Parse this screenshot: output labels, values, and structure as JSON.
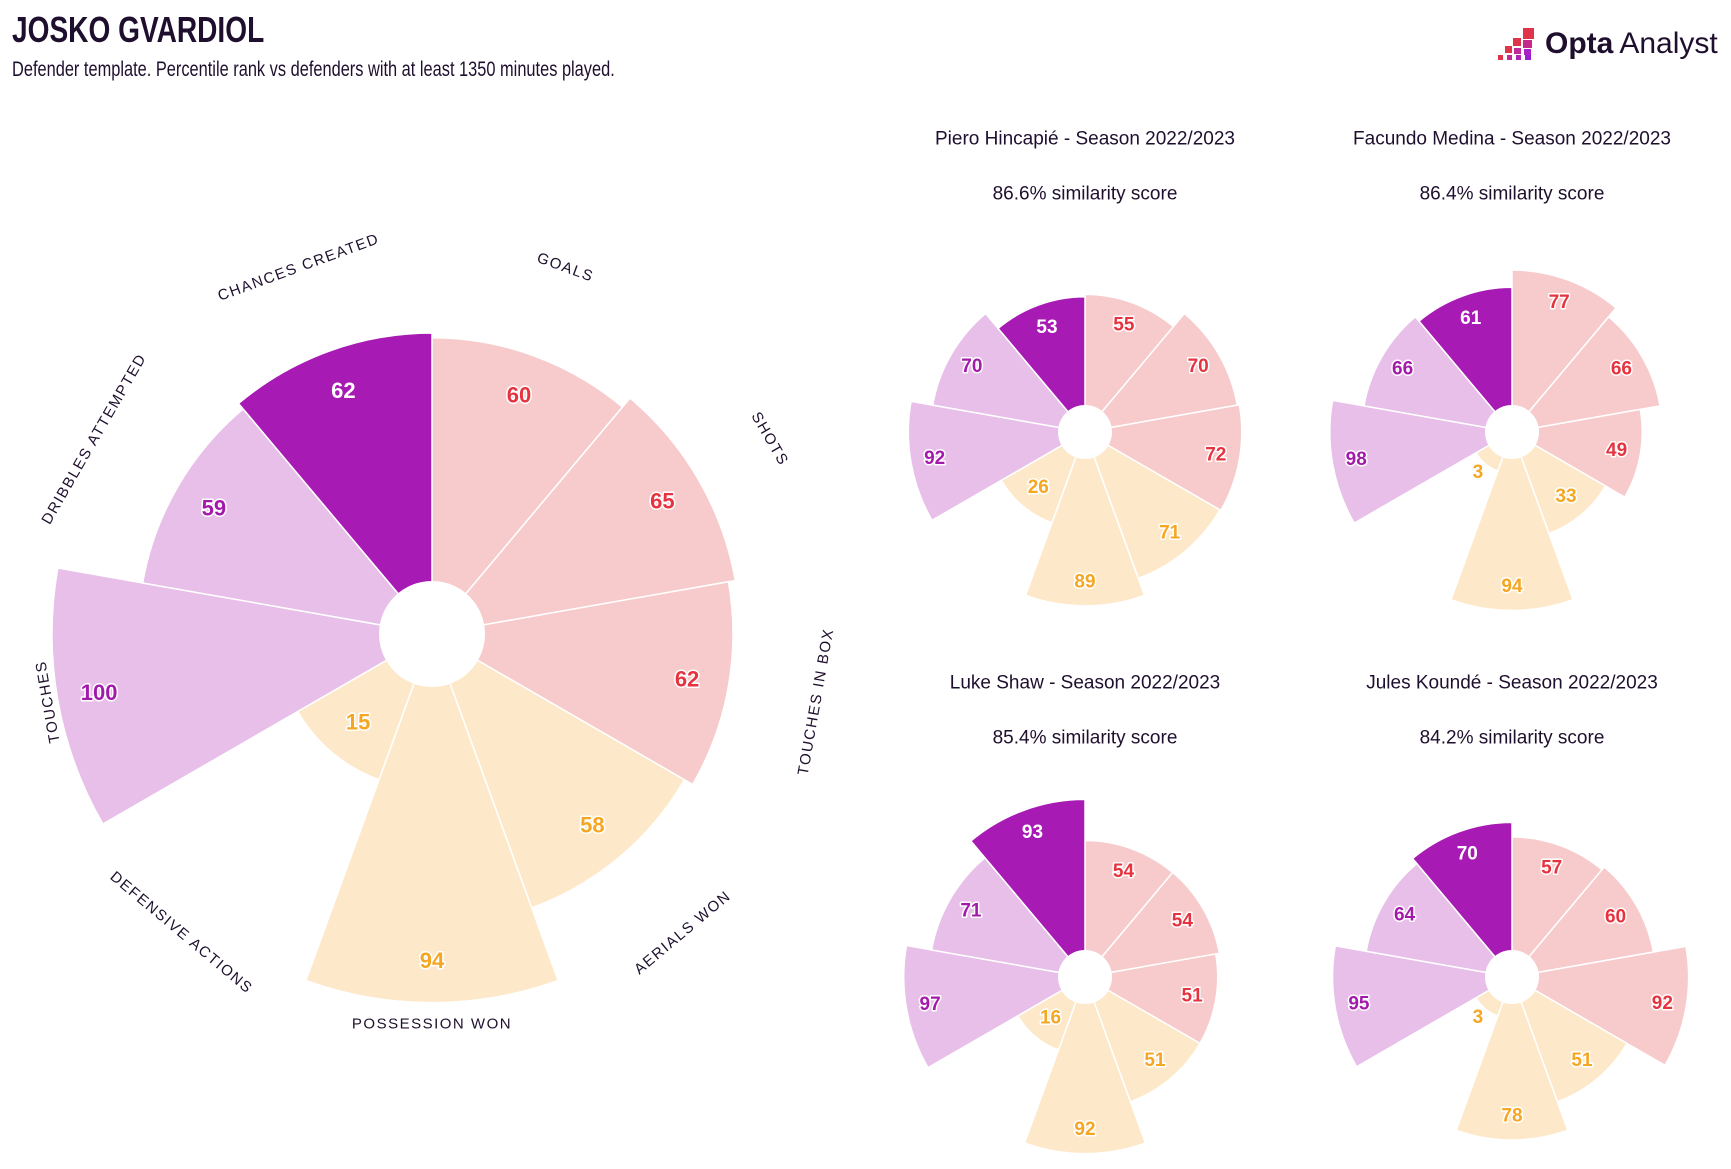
{
  "header": {
    "title": "JOSKO GVARDIOL",
    "subtitle": "Defender template. Percentile rank vs defenders with at least 1350 minutes played.",
    "logo_bold": "Opta",
    "logo_light": "Analyst"
  },
  "colors": {
    "attack_fill": "#f7cbcc",
    "attack_text": "#e5333f",
    "defence_fill": "#fde9ca",
    "defence_text": "#f5a623",
    "possession_fill": "#e7bfe9",
    "possession_text": "#a31aab",
    "highlight_fill": "#a71ab4",
    "highlight_text": "#ffffff"
  },
  "chart_data": {
    "type": "radial-bar (pizza)",
    "scale": "percentile 0-100",
    "categories": [
      "GOALS",
      "SHOTS",
      "TOUCHES IN BOX",
      "AERIALS WON",
      "POSSESSION WON",
      "DEFENSIVE ACTIONS",
      "TOUCHES",
      "DRIBBLES ATTEMPTED",
      "CHANCES CREATED"
    ],
    "groups": [
      "attack",
      "attack",
      "attack",
      "defence",
      "defence",
      "defence",
      "possession",
      "possession",
      "highlight"
    ],
    "main": {
      "player": "JOSKO GVARDIOL",
      "values": [
        60,
        65,
        62,
        58,
        94,
        15,
        100,
        59,
        62
      ]
    },
    "comparisons": [
      {
        "title": "Piero Hincapié - Season 2022/2023",
        "similarity": "86.6% similarity score",
        "values": [
          55,
          70,
          72,
          71,
          89,
          26,
          92,
          70,
          53
        ]
      },
      {
        "title": "Facundo Medina - Season 2022/2023",
        "similarity": "86.4% similarity score",
        "values": [
          77,
          66,
          49,
          33,
          94,
          3,
          98,
          66,
          61
        ]
      },
      {
        "title": "Luke Shaw - Season 2022/2023",
        "similarity": "85.4% similarity score",
        "values": [
          54,
          54,
          51,
          51,
          92,
          16,
          97,
          71,
          93
        ]
      },
      {
        "title": "Jules Koundé - Season 2022/2023",
        "similarity": "84.2% similarity score",
        "values": [
          57,
          60,
          92,
          51,
          78,
          3,
          95,
          64,
          70
        ]
      }
    ]
  }
}
